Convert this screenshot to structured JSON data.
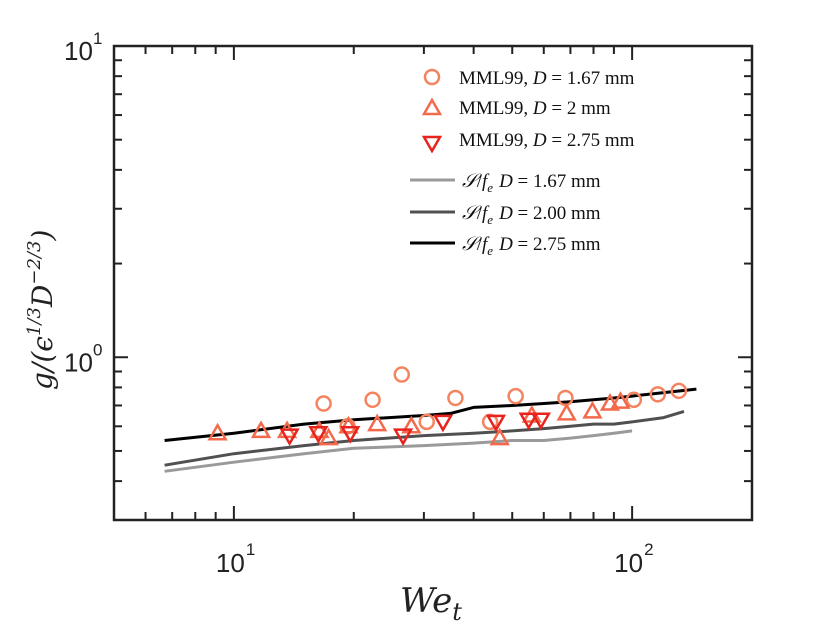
{
  "chart_data": {
    "type": "scatter",
    "xscale": "log",
    "yscale": "log",
    "xlim": [
      5,
      200
    ],
    "ylim": [
      0.3,
      10
    ],
    "grid": false,
    "legend_placement": "top-right",
    "xlabel": "We_t",
    "ylabel": "g/(ε^{1/3} D^{-2/3})",
    "xticks": [
      {
        "value": 10,
        "base": "10",
        "exp": "1"
      },
      {
        "value": 100,
        "base": "10",
        "exp": "2"
      }
    ],
    "yticks": [
      {
        "value": 1,
        "base": "10",
        "exp": "0"
      },
      {
        "value": 10,
        "base": "10",
        "exp": "1"
      }
    ],
    "series": [
      {
        "name": "MML99, D = 1.67 mm",
        "marker": "circle",
        "color": "#F4845F",
        "x": [
          16.8,
          19.3,
          22.3,
          26.4,
          30.5,
          36.0,
          44.0,
          51.0,
          68.0,
          101.0,
          116.0,
          131.0
        ],
        "y": [
          0.71,
          0.6,
          0.73,
          0.88,
          0.62,
          0.74,
          0.62,
          0.75,
          0.74,
          0.73,
          0.76,
          0.78
        ]
      },
      {
        "name": "MML99, D = 2 mm",
        "marker": "triangle-up",
        "color": "#F26A4B",
        "x": [
          9.1,
          11.7,
          13.6,
          16.4,
          17.3,
          19.4,
          22.9,
          27.9,
          46.5,
          56.0,
          68.5,
          79.5,
          88.0,
          93.5
        ],
        "y": [
          0.57,
          0.58,
          0.58,
          0.58,
          0.55,
          0.6,
          0.61,
          0.6,
          0.55,
          0.65,
          0.66,
          0.67,
          0.71,
          0.72
        ]
      },
      {
        "name": "MML99, D = 2.75 mm",
        "marker": "triangle-down",
        "color": "#E8231E",
        "x": [
          13.8,
          16.3,
          19.6,
          26.6,
          33.5,
          45.5,
          55.0,
          59.0
        ],
        "y": [
          0.56,
          0.57,
          0.57,
          0.56,
          0.62,
          0.62,
          0.63,
          0.63
        ]
      },
      {
        "name": "S/f_e D = 1.67 mm",
        "line": true,
        "color": "#9a9a9a",
        "x": [
          6.7,
          10,
          15,
          20,
          30,
          40,
          50,
          60,
          70,
          80,
          90,
          100
        ],
        "y": [
          0.43,
          0.46,
          0.49,
          0.51,
          0.52,
          0.53,
          0.54,
          0.54,
          0.55,
          0.56,
          0.57,
          0.58
        ]
      },
      {
        "name": "S/f_e D = 2.00 mm",
        "line": true,
        "color": "#505050",
        "x": [
          6.7,
          10,
          15,
          20,
          30,
          40,
          50,
          60,
          70,
          80,
          90,
          100,
          120,
          135
        ],
        "y": [
          0.45,
          0.49,
          0.52,
          0.54,
          0.56,
          0.57,
          0.58,
          0.59,
          0.6,
          0.61,
          0.61,
          0.62,
          0.64,
          0.67
        ]
      },
      {
        "name": "S/f_e D = 2.75 mm",
        "line": true,
        "color": "#000000",
        "x": [
          6.7,
          10,
          15,
          20,
          30,
          35,
          40,
          50,
          60,
          70,
          80,
          90,
          100,
          120,
          145
        ],
        "y": [
          0.54,
          0.57,
          0.61,
          0.63,
          0.65,
          0.66,
          0.69,
          0.7,
          0.71,
          0.72,
          0.73,
          0.74,
          0.75,
          0.77,
          0.79
        ]
      }
    ]
  },
  "legend": {
    "mml_167": "MML99, ",
    "mml_2": "MML99, ",
    "mml_275": "MML99, ",
    "D": "D",
    "eq_167": " = 1.67 mm",
    "eq_2": " = 2 mm",
    "eq_275": " = 2.75 mm",
    "S": "𝒮",
    "over_f": "/",
    "f": "f",
    "e": "e",
    "line_eq_167": " = 1.67 mm",
    "line_eq_200": " = 2.00 mm",
    "line_eq_275": " = 2.75 mm"
  },
  "axis": {
    "x_We": "We",
    "x_t": "t",
    "y_g": "g/(ϵ",
    "y_exp1": "1/3",
    "y_D": "D",
    "y_exp2": "−2/3",
    "y_close": ")"
  }
}
